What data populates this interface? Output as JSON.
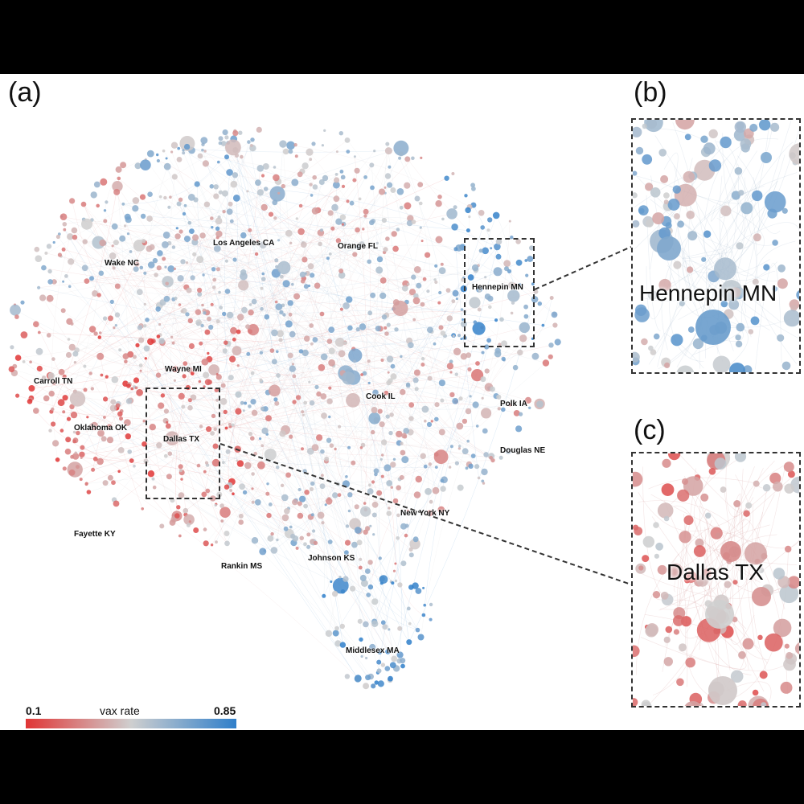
{
  "panels": {
    "a": "(a)",
    "b": "(b)",
    "c": "(c)"
  },
  "county_labels": [
    "Los Angeles CA",
    "Orange FL",
    "Wake NC",
    "Hennepin MN",
    "Wayne MI",
    "Carroll TN",
    "Cook IL",
    "Polk IA",
    "Oklahoma OK",
    "Dallas TX",
    "Douglas NE",
    "New York NY",
    "Fayette KY",
    "Rankin MS",
    "Johnson KS",
    "Middlesex MA"
  ],
  "inset_b": {
    "label": "Hennepin MN"
  },
  "inset_c": {
    "label": "Dallas TX"
  },
  "legend": {
    "min": "0.1",
    "title": "vax rate",
    "max": "0.85",
    "colors": {
      "low": "#e03535",
      "mid": "#cfcfcf",
      "high": "#2f7fca"
    }
  }
}
